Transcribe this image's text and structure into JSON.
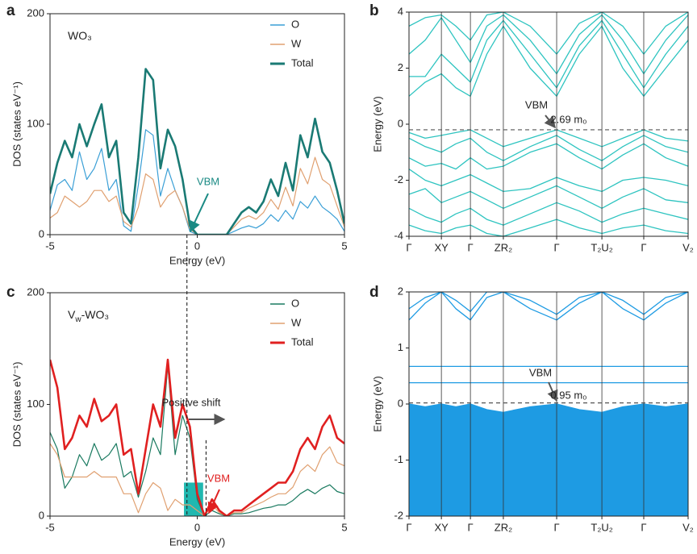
{
  "chart_data": [
    {
      "type": "line",
      "label": "a",
      "annotation": [
        "WO₃"
      ],
      "xlabel": "Energy (eV)",
      "ylabel": "DOS (states eV⁻¹)",
      "xlim": [
        -5,
        5
      ],
      "xticks": [
        -5,
        0,
        5
      ],
      "ylim": [
        0,
        200
      ],
      "yticks": [
        0,
        100,
        200
      ],
      "legend": "upper right",
      "notes": [
        {
          "text": "VBM",
          "color": "#1a8a84"
        }
      ],
      "x": [
        -5,
        -4.75,
        -4.5,
        -4.25,
        -4,
        -3.75,
        -3.5,
        -3.25,
        -3,
        -2.75,
        -2.5,
        -2.25,
        -2,
        -1.75,
        -1.5,
        -1.25,
        -1,
        -0.75,
        -0.5,
        -0.25,
        0,
        0.25,
        0.5,
        0.75,
        1,
        1.25,
        1.5,
        1.75,
        2,
        2.25,
        2.5,
        2.75,
        3,
        3.25,
        3.5,
        3.75,
        4,
        4.25,
        4.5,
        4.75,
        5
      ],
      "series": [
        {
          "name": "O",
          "color": "#3a9fd6",
          "width": 1.2,
          "values": [
            22,
            45,
            50,
            40,
            75,
            50,
            60,
            78,
            40,
            50,
            8,
            3,
            45,
            95,
            90,
            35,
            60,
            40,
            25,
            3,
            0,
            0,
            0,
            0,
            0,
            3,
            6,
            8,
            6,
            10,
            18,
            12,
            22,
            14,
            30,
            24,
            35,
            25,
            20,
            14,
            3
          ]
        },
        {
          "name": "W",
          "color": "#e0a070",
          "width": 1.2,
          "values": [
            15,
            20,
            35,
            30,
            25,
            30,
            40,
            40,
            30,
            35,
            12,
            7,
            25,
            55,
            50,
            25,
            35,
            40,
            25,
            5,
            0,
            0,
            0,
            0,
            0,
            7,
            14,
            17,
            14,
            20,
            32,
            23,
            43,
            26,
            60,
            46,
            70,
            50,
            45,
            26,
            7
          ]
        },
        {
          "name": "Total",
          "color": "#1a7a74",
          "width": 2.6,
          "values": [
            37,
            65,
            85,
            70,
            100,
            80,
            100,
            118,
            70,
            85,
            20,
            10,
            70,
            150,
            140,
            60,
            95,
            80,
            50,
            8,
            0,
            0,
            0,
            0,
            0,
            10,
            20,
            25,
            20,
            30,
            50,
            35,
            65,
            40,
            90,
            70,
            105,
            75,
            65,
            40,
            10
          ]
        }
      ]
    },
    {
      "type": "line",
      "label": "b",
      "ylabel": "Energy (eV)",
      "color": "#2ec4c0",
      "xgrid": true,
      "hlines": [
        -0.2
      ],
      "ylim": [
        -4,
        4
      ],
      "yticks": [
        -4,
        -2,
        0,
        2,
        4
      ],
      "xlim": [
        0,
        1
      ],
      "xticks": [
        {
          "value": 0,
          "label": "Γ"
        },
        {
          "value": 0.116,
          "label": "XY"
        },
        {
          "value": 0.22,
          "label": "Γ"
        },
        {
          "value": 0.338,
          "label": "ZR₂"
        },
        {
          "value": 0.529,
          "label": "Γ"
        },
        {
          "value": 0.691,
          "label": "T₂U₂"
        },
        {
          "value": 0.841,
          "label": "Γ"
        },
        {
          "value": 1,
          "label": "V₂"
        }
      ],
      "notes": [
        {
          "text": "VBM",
          "color": "#222"
        },
        {
          "text": "2.69 m₀",
          "color": "#222"
        }
      ],
      "x": [
        0,
        0.058,
        0.116,
        0.168,
        0.22,
        0.279,
        0.338,
        0.434,
        0.529,
        0.61,
        0.691,
        0.766,
        0.841,
        0.92,
        1
      ],
      "series": [
        {
          "values": [
            1,
            1.5,
            1.8,
            1.3,
            1,
            2.5,
            3.5,
            2,
            1,
            2.5,
            3.5,
            2,
            1,
            2,
            3
          ]
        },
        {
          "values": [
            1.7,
            1.7,
            2.5,
            2,
            1.5,
            3,
            3.7,
            2.5,
            1.3,
            2.8,
            3.7,
            2.5,
            1.3,
            2.5,
            3.5
          ]
        },
        {
          "values": [
            2.5,
            3,
            3.8,
            3,
            2.2,
            3.5,
            3.9,
            3,
            1.8,
            3.2,
            3.9,
            3,
            1.8,
            3,
            3.9
          ]
        },
        {
          "values": [
            3.5,
            3.8,
            3.9,
            3.5,
            3,
            3.9,
            4,
            3.5,
            2.5,
            3.6,
            4,
            3.5,
            2.5,
            3.5,
            4
          ]
        },
        {
          "values": [
            -0.3,
            -0.5,
            -0.4,
            -0.3,
            -0.2,
            -0.5,
            -0.8,
            -0.5,
            -0.2,
            -0.5,
            -0.8,
            -0.5,
            -0.2,
            -0.5,
            -0.6
          ]
        },
        {
          "values": [
            -0.5,
            -0.8,
            -1,
            -0.7,
            -0.5,
            -1,
            -1.3,
            -0.8,
            -0.4,
            -0.9,
            -1.3,
            -0.8,
            -0.4,
            -0.8,
            -1
          ]
        },
        {
          "values": [
            -1.2,
            -1.5,
            -1.4,
            -1.6,
            -1.2,
            -1.6,
            -1.5,
            -1,
            -0.7,
            -1.2,
            -1.6,
            -1.1,
            -0.7,
            -1.2,
            -1.5
          ]
        },
        {
          "values": [
            -1.6,
            -2,
            -2.2,
            -2,
            -1.8,
            -2.1,
            -2.4,
            -2.3,
            -1.9,
            -2.2,
            -2.4,
            -2,
            -1.9,
            -2,
            -2.2
          ]
        },
        {
          "values": [
            -2.5,
            -2.3,
            -2.8,
            -2.6,
            -2.4,
            -2.7,
            -3,
            -2.6,
            -2.2,
            -2.6,
            -3,
            -2.6,
            -2.3,
            -2.7,
            -2.8
          ]
        },
        {
          "values": [
            -3,
            -3.3,
            -3.5,
            -3.2,
            -3,
            -3.4,
            -3.6,
            -3.2,
            -2.8,
            -3.1,
            -3.5,
            -3.2,
            -3,
            -3.2,
            -3.4
          ]
        },
        {
          "values": [
            -3.6,
            -3.8,
            -3.9,
            -3.7,
            -3.6,
            -3.9,
            -4,
            -3.7,
            -3.4,
            -3.7,
            -3.9,
            -3.7,
            -3.6,
            -3.8,
            -3.9
          ]
        }
      ]
    },
    {
      "type": "line",
      "label": "c",
      "annotation": [
        "V",
        "w",
        "-WO₃"
      ],
      "xlabel": "Energy (eV)",
      "ylabel": "DOS (states eV⁻¹)",
      "xlim": [
        -5,
        5
      ],
      "xticks": [
        -5,
        0,
        5
      ],
      "ylim": [
        0,
        200
      ],
      "yticks": [
        0,
        100,
        200
      ],
      "legend": "upper right",
      "shade": {
        "x": [
          -0.45,
          0.2
        ],
        "y": [
          0,
          30
        ],
        "color": "#20b8b0"
      },
      "vlines": [
        -0.35,
        0.3
      ],
      "notes": [
        {
          "text": "Positive shift",
          "color": "#222"
        },
        {
          "text": "VBM",
          "color": "#e02020"
        }
      ],
      "x": [
        -5,
        -4.75,
        -4.5,
        -4.25,
        -4,
        -3.75,
        -3.5,
        -3.25,
        -3,
        -2.75,
        -2.5,
        -2.25,
        -2,
        -1.75,
        -1.5,
        -1.25,
        -1,
        -0.75,
        -0.5,
        -0.25,
        0,
        0.25,
        0.5,
        0.75,
        1,
        1.25,
        1.5,
        1.75,
        2,
        2.25,
        2.5,
        2.75,
        3,
        3.25,
        3.5,
        3.75,
        4,
        4.25,
        4.5,
        4.75,
        5
      ],
      "series": [
        {
          "name": "O",
          "color": "#1a7a60",
          "width": 1.2,
          "values": [
            75,
            60,
            25,
            35,
            55,
            45,
            65,
            50,
            55,
            65,
            35,
            40,
            17,
            40,
            70,
            55,
            135,
            55,
            90,
            70,
            15,
            0,
            5,
            2,
            0,
            2,
            2,
            3,
            5,
            7,
            8,
            10,
            10,
            14,
            20,
            24,
            20,
            25,
            28,
            22,
            20
          ]
        },
        {
          "name": "W",
          "color": "#e0a070",
          "width": 1.2,
          "values": [
            65,
            55,
            35,
            35,
            35,
            35,
            40,
            35,
            35,
            35,
            20,
            20,
            3,
            20,
            30,
            25,
            5,
            15,
            10,
            10,
            5,
            0,
            10,
            3,
            0,
            3,
            3,
            7,
            10,
            13,
            17,
            20,
            20,
            26,
            40,
            46,
            40,
            55,
            62,
            48,
            45
          ]
        },
        {
          "name": "Total",
          "color": "#e02020",
          "width": 2.6,
          "values": [
            140,
            115,
            60,
            70,
            90,
            80,
            105,
            85,
            90,
            100,
            55,
            60,
            20,
            60,
            100,
            80,
            140,
            70,
            100,
            80,
            20,
            0,
            15,
            5,
            0,
            5,
            5,
            10,
            15,
            20,
            25,
            30,
            30,
            40,
            60,
            70,
            60,
            80,
            90,
            70,
            65
          ]
        }
      ]
    },
    {
      "type": "line",
      "label": "d",
      "ylabel": "Energy (eV)",
      "color": "#1e9be3",
      "xgrid": true,
      "hlines": [
        0.02
      ],
      "ylim": [
        -2,
        2
      ],
      "yticks": [
        -2,
        -1,
        0,
        1,
        2
      ],
      "xlim": [
        0,
        1
      ],
      "xticks": [
        {
          "value": 0,
          "label": "Γ"
        },
        {
          "value": 0.116,
          "label": "XY"
        },
        {
          "value": 0.22,
          "label": "Γ"
        },
        {
          "value": 0.338,
          "label": "ZR₂"
        },
        {
          "value": 0.529,
          "label": "Γ"
        },
        {
          "value": 0.691,
          "label": "T₂U₂"
        },
        {
          "value": 0.841,
          "label": "Γ"
        },
        {
          "value": 1,
          "label": "V₂"
        }
      ],
      "notes": [
        {
          "text": "VBM",
          "color": "#222"
        },
        {
          "text": "0.95 m₀",
          "color": "#222"
        }
      ],
      "x": [
        0,
        0.058,
        0.116,
        0.168,
        0.22,
        0.279,
        0.338,
        0.434,
        0.529,
        0.61,
        0.691,
        0.766,
        0.841,
        0.92,
        1
      ],
      "series": [
        {
          "values": [
            1.5,
            1.8,
            2,
            1.7,
            1.5,
            1.9,
            2,
            1.7,
            1.5,
            1.8,
            2,
            1.7,
            1.5,
            1.8,
            2
          ]
        },
        {
          "values": [
            1.7,
            1.9,
            2,
            1.85,
            1.65,
            2,
            2,
            1.85,
            1.6,
            1.9,
            2,
            1.85,
            1.6,
            1.9,
            2
          ]
        },
        {
          "values": [
            0.67,
            0.67,
            0.67,
            0.67,
            0.67,
            0.67,
            0.67,
            0.67,
            0.67,
            0.67,
            0.67,
            0.67,
            0.67,
            0.67,
            0.67
          ]
        },
        {
          "values": [
            0.38,
            0.38,
            0.38,
            0.38,
            0.38,
            0.38,
            0.38,
            0.38,
            0.38,
            0.38,
            0.38,
            0.38,
            0.38,
            0.38,
            0.38
          ]
        },
        {
          "values": [
            0,
            -0.05,
            0,
            -0.05,
            0,
            -0.1,
            -0.15,
            -0.05,
            0,
            -0.1,
            -0.15,
            -0.05,
            0,
            -0.05,
            0
          ],
          "fill": true
        }
      ]
    }
  ]
}
